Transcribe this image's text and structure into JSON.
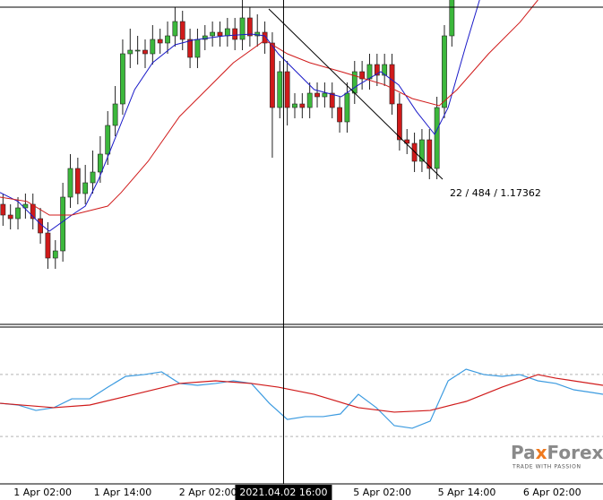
{
  "chart_data": [
    {
      "type": "candlestick",
      "xlim": [
        -0.4,
        80.2
      ],
      "ylim": [
        1.16935,
        1.1784
      ],
      "up_color": "#3cb83c",
      "down_color": "#d01a1a",
      "open": [
        1.1727,
        1.1724,
        1.1723,
        1.1726,
        1.1727,
        1.1723,
        1.1719,
        1.1712,
        1.1714,
        1.1729,
        1.1737,
        1.173,
        1.1733,
        1.1736,
        1.1741,
        1.1749,
        1.1755,
        1.1769,
        1.177,
        1.177,
        1.1769,
        1.1773,
        1.1772,
        1.1774,
        1.1778,
        1.1773,
        1.1768,
        1.1773,
        1.1774,
        1.1775,
        1.1774,
        1.1776,
        1.1773,
        1.1779,
        1.1774,
        1.1775,
        1.1772,
        1.1754,
        1.1764,
        1.1754,
        1.1755,
        1.1754,
        1.1758,
        1.1757,
        1.1758,
        1.1754,
        1.175,
        1.1758,
        1.1764,
        1.1762,
        1.1766,
        1.1763,
        1.1766,
        1.1755,
        1.1745,
        1.1744,
        1.1739,
        1.1745,
        1.1737,
        1.1754,
        1.1774
      ],
      "high": [
        1.173,
        1.1727,
        1.1729,
        1.173,
        1.173,
        1.1726,
        1.1722,
        1.1717,
        1.1733,
        1.1741,
        1.174,
        1.1738,
        1.1742,
        1.1746,
        1.1753,
        1.176,
        1.1773,
        1.1776,
        1.1774,
        1.1773,
        1.1777,
        1.1776,
        1.1778,
        1.1782,
        1.1781,
        1.1776,
        1.1776,
        1.1777,
        1.1778,
        1.1778,
        1.1779,
        1.1779,
        1.1784,
        1.1782,
        1.178,
        1.1778,
        1.1775,
        1.1767,
        1.1767,
        1.1758,
        1.1758,
        1.1761,
        1.1761,
        1.1761,
        1.1761,
        1.1757,
        1.1761,
        1.1767,
        1.1767,
        1.1769,
        1.1769,
        1.1769,
        1.1769,
        1.1758,
        1.1748,
        1.1747,
        1.1748,
        1.1748,
        1.1757,
        1.1777,
        1.1788
      ],
      "low": [
        1.1721,
        1.172,
        1.172,
        1.1723,
        1.172,
        1.1716,
        1.1709,
        1.1709,
        1.1711,
        1.1726,
        1.1727,
        1.1727,
        1.173,
        1.1733,
        1.1738,
        1.1746,
        1.1752,
        1.1765,
        1.1766,
        1.1765,
        1.1766,
        1.1769,
        1.1769,
        1.1771,
        1.177,
        1.1765,
        1.1765,
        1.177,
        1.1771,
        1.1771,
        1.1771,
        1.177,
        1.177,
        1.1771,
        1.1771,
        1.1769,
        1.174,
        1.1751,
        1.1749,
        1.1751,
        1.1751,
        1.1751,
        1.1754,
        1.1754,
        1.1751,
        1.1747,
        1.1747,
        1.1755,
        1.1759,
        1.1759,
        1.176,
        1.176,
        1.1752,
        1.1742,
        1.1741,
        1.1736,
        1.1736,
        1.1734,
        1.1734,
        1.1751,
        1.1771
      ],
      "close": [
        1.1724,
        1.1723,
        1.1726,
        1.1727,
        1.1723,
        1.1719,
        1.1712,
        1.1714,
        1.1729,
        1.1737,
        1.173,
        1.1733,
        1.1736,
        1.1741,
        1.1749,
        1.1755,
        1.1769,
        1.177,
        1.177,
        1.1769,
        1.1773,
        1.1772,
        1.1774,
        1.1778,
        1.1773,
        1.1768,
        1.1773,
        1.1774,
        1.1775,
        1.1774,
        1.1776,
        1.1773,
        1.1779,
        1.1774,
        1.1775,
        1.1772,
        1.1754,
        1.1764,
        1.1754,
        1.1755,
        1.1754,
        1.1758,
        1.1757,
        1.1758,
        1.1754,
        1.175,
        1.1758,
        1.1764,
        1.1762,
        1.1766,
        1.1763,
        1.1766,
        1.1755,
        1.1745,
        1.1744,
        1.1739,
        1.1745,
        1.1737,
        1.1754,
        1.1774,
        1.1785
      ],
      "overlays": [
        {
          "color": "#1a1ac8",
          "x": [
            -0.4,
            2.0,
            5.0,
            6.2,
            9.2,
            11.0,
            12.8,
            15.2,
            17.6,
            20.0,
            23.0,
            25.4,
            29.6,
            33.2,
            35.0,
            36.8,
            39.2,
            41.6,
            45.2,
            47.5,
            50.5,
            52.9,
            55.3,
            57.7,
            59.5,
            61.9,
            63.7
          ],
          "values": [
            1.17303,
            1.17278,
            1.17215,
            1.17195,
            1.1724,
            1.17265,
            1.1734,
            1.17465,
            1.1759,
            1.17665,
            1.17715,
            1.17728,
            1.1774,
            1.17745,
            1.1774,
            1.1769,
            1.1764,
            1.1759,
            1.1757,
            1.17603,
            1.1764,
            1.17603,
            1.17528,
            1.17465,
            1.1754,
            1.17715,
            1.1784
          ]
        },
        {
          "color": "#d01a1a",
          "x": [
            -0.4,
            3.2,
            6.2,
            9.2,
            14.0,
            15.8,
            19.4,
            23.6,
            27.2,
            30.8,
            35.0,
            38.0,
            41.0,
            45.2,
            51.1,
            54.7,
            58.3,
            60.7,
            64.9,
            69.1,
            71.5
          ],
          "values": [
            1.1729,
            1.17278,
            1.1724,
            1.1724,
            1.17265,
            1.17303,
            1.1739,
            1.17515,
            1.1759,
            1.17665,
            1.17728,
            1.1769,
            1.17665,
            1.1764,
            1.17603,
            1.17565,
            1.17545,
            1.1759,
            1.1769,
            1.17778,
            1.1784
          ]
        }
      ],
      "annotation": "22 / 484 / 1.17362",
      "xticks": [
        {
          "value": 5.3,
          "label": "1 Apr 02:00"
        },
        {
          "value": 16.0,
          "label": "1 Apr 14:00"
        },
        {
          "value": 27.4,
          "label": "2 Apr 02:00"
        },
        {
          "value": 50.7,
          "label": "5 Apr 02:00"
        },
        {
          "value": 62.0,
          "label": "5 Apr 14:00"
        },
        {
          "value": 73.4,
          "label": "6 Apr 02:00"
        }
      ],
      "crosshair": {
        "x": 37.5,
        "label": "2021.04.02 16:00"
      }
    },
    {
      "type": "line",
      "xlim": [
        -0.4,
        80.2
      ],
      "ylim": [
        0,
        100
      ],
      "levels": [
        70,
        30
      ],
      "series": [
        {
          "color": "#3c9be0",
          "x": [
            -0.4,
            2.0,
            4.4,
            6.8,
            9.2,
            11.6,
            14.0,
            16.4,
            18.8,
            21.2,
            23.6,
            26.0,
            28.4,
            30.8,
            33.2,
            35.6,
            38.0,
            40.4,
            42.8,
            45.1,
            47.5,
            49.9,
            52.3,
            54.7,
            57.1,
            59.5,
            61.9,
            64.3,
            66.7,
            69.1,
            71.5,
            73.9,
            76.3,
            78.7,
            80.2
          ],
          "values": [
            51.4,
            50.3,
            46.8,
            48.6,
            54.3,
            54.3,
            61.8,
            68.8,
            69.9,
            71.7,
            64.2,
            63.0,
            64.2,
            65.9,
            64.2,
            51.4,
            41.0,
            42.8,
            42.8,
            44.5,
            57.2,
            48.6,
            37.0,
            35.3,
            39.9,
            65.9,
            73.4,
            69.9,
            68.8,
            69.9,
            65.9,
            64.2,
            60.1,
            58.4,
            57.2
          ]
        },
        {
          "color": "#d01a1a",
          "x": [
            -0.4,
            6.8,
            11.6,
            17.6,
            23.6,
            28.4,
            33.2,
            36.8,
            41.6,
            47.5,
            52.3,
            57.1,
            61.9,
            66.7,
            71.5,
            73.9,
            80.2
          ],
          "values": [
            51.4,
            48.6,
            50.3,
            57.2,
            64.2,
            65.9,
            64.2,
            61.8,
            57.2,
            48.6,
            45.7,
            46.8,
            52.6,
            61.8,
            69.9,
            67.6,
            63.0
          ]
        }
      ]
    }
  ],
  "logo": {
    "parts": [
      "Pa",
      "x",
      "Forex"
    ],
    "tagline": "TRADE WITH PASSION"
  }
}
